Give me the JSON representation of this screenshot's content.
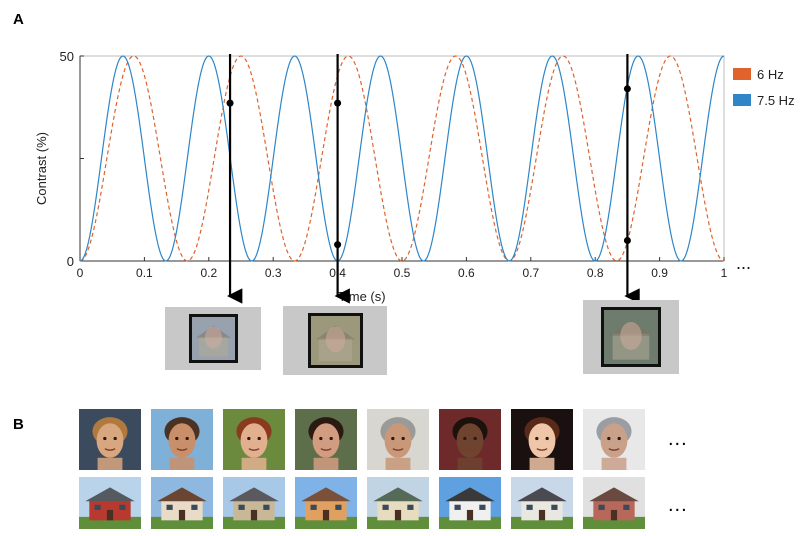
{
  "panel_labels": {
    "a": "A",
    "b": "B"
  },
  "chart_data": {
    "type": "line",
    "title": "",
    "xlabel": "Time (s)",
    "ylabel": "Contrast (%)",
    "xlim": [
      0,
      1
    ],
    "ylim": [
      0,
      50
    ],
    "x_ticks": [
      "0",
      "0.1",
      "0.2",
      "0.3",
      "0.4",
      "0.5",
      "0.6",
      "0.7",
      "0.8",
      "0.9",
      "1"
    ],
    "y_ticks": [
      "0",
      "50"
    ],
    "continuation": "...",
    "legend_position": "right",
    "series": [
      {
        "name": "6 Hz",
        "frequency_hz": 6,
        "amplitude": 50,
        "color": "#E0622C",
        "style": "dashed"
      },
      {
        "name": "7.5 Hz",
        "frequency_hz": 7.5,
        "amplitude": 50,
        "color": "#2E86C8",
        "style": "solid"
      }
    ],
    "markers": [
      {
        "time_s": 0.233,
        "points": [
          38.5
        ]
      },
      {
        "time_s": 0.4,
        "points": [
          38.5,
          4
        ]
      },
      {
        "time_s": 0.85,
        "points": [
          42,
          5
        ]
      }
    ]
  },
  "stimulus_images": [
    {
      "name": "face-house-blend-1",
      "tint": "#8a95a3"
    },
    {
      "name": "face-house-blend-2",
      "tint": "#8f8a6a"
    },
    {
      "name": "face-house-blend-3",
      "tint": "#5a6a5a"
    }
  ],
  "face_images": [
    {
      "bg": "#3b4a5c",
      "skin": "#d9a77f",
      "hair": "#b07a3e"
    },
    {
      "bg": "#7fb0d8",
      "skin": "#c98f6a",
      "hair": "#4a3322"
    },
    {
      "bg": "#6b8a3e",
      "skin": "#e3b08f",
      "hair": "#8a3a1e"
    },
    {
      "bg": "#5c6e4a",
      "skin": "#d29c80",
      "hair": "#2b1a12"
    },
    {
      "bg": "#d8d6d0",
      "skin": "#c89878",
      "hair": "#9a9a98"
    },
    {
      "bg": "#6e2a2a",
      "skin": "#6e4330",
      "hair": "#1c120c"
    },
    {
      "bg": "#1a1010",
      "skin": "#f0c6a8",
      "hair": "#5a2a18"
    },
    {
      "bg": "#e8e8e8",
      "skin": "#c9a08a",
      "hair": "#9a9ea2"
    }
  ],
  "house_images": [
    {
      "sky": "#b8d3ea",
      "wall": "#b83a2e",
      "roof": "#555a60"
    },
    {
      "sky": "#8fb8e0",
      "wall": "#e8dcc8",
      "roof": "#6a4632"
    },
    {
      "sky": "#a8c8e8",
      "wall": "#c8b898",
      "roof": "#5a5a5e"
    },
    {
      "sky": "#7fb2e6",
      "wall": "#e0a060",
      "roof": "#7a5038"
    },
    {
      "sky": "#c0d4e4",
      "wall": "#e8dcc0",
      "roof": "#556a58"
    },
    {
      "sky": "#5fa0e0",
      "wall": "#f0f0f0",
      "roof": "#3a3a3a"
    },
    {
      "sky": "#c8d8e8",
      "wall": "#e8e8e0",
      "roof": "#4a4a50"
    },
    {
      "sky": "#e0e0e0",
      "wall": "#b8685a",
      "roof": "#6a4a40"
    }
  ],
  "row_continuation": "..."
}
